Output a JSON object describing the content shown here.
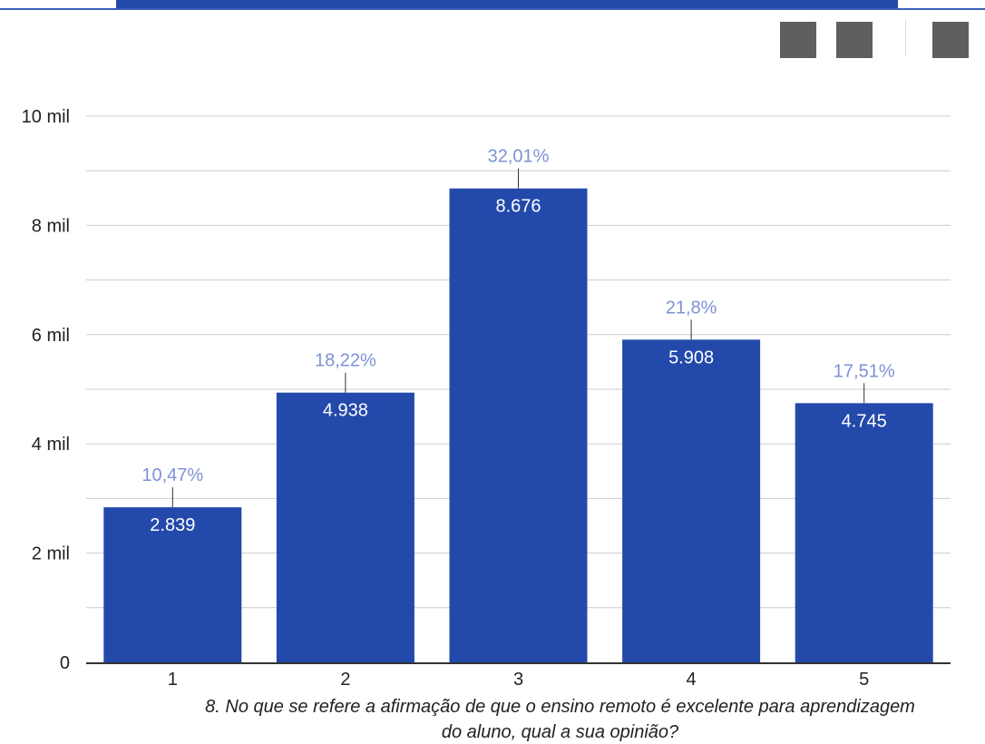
{
  "colors": {
    "bar": "#2349aa",
    "banner": "#2349aa",
    "top_rule": "#3b5dbb",
    "pct_label": "#7d92d4",
    "value_label": "#ffffff",
    "grid": "#cccccc",
    "axis": "#333333",
    "text": "#222222",
    "toolbar_button": "#5f5f5f"
  },
  "toolbar": {
    "buttons": [
      {
        "icon": "toolbar-button-1-icon"
      },
      {
        "icon": "toolbar-button-2-icon"
      },
      {
        "icon": "toolbar-button-3-icon"
      }
    ]
  },
  "chart_data": {
    "type": "bar",
    "categories": [
      "1",
      "2",
      "3",
      "4",
      "5"
    ],
    "values": [
      2839,
      4938,
      8676,
      5908,
      4745
    ],
    "value_labels": [
      "2.839",
      "4.938",
      "8.676",
      "5.908",
      "4.745"
    ],
    "percent_labels": [
      "10,47%",
      "18,22%",
      "32,01%",
      "21,8%",
      "17,51%"
    ],
    "ylim": [
      0,
      10000
    ],
    "yticks": [
      0,
      2000,
      4000,
      6000,
      8000,
      10000
    ],
    "ytick_labels": [
      "0",
      "2 mil",
      "4 mil",
      "6 mil",
      "8 mil",
      "10 mil"
    ],
    "minor_gridlines": [
      1000,
      3000,
      5000,
      7000,
      9000
    ],
    "xlabel": "8. No que se refere a afirmação de que o ensino remoto é excelente para aprendizagem do aluno, qual a sua opinião?",
    "xlabel_lines": [
      "8. No que se refere a afirmação de que o ensino remoto é excelente para aprendizagem",
      "do aluno, qual a sua opinião?"
    ],
    "ylabel": "",
    "title": "",
    "grid": true,
    "legend": "none"
  }
}
